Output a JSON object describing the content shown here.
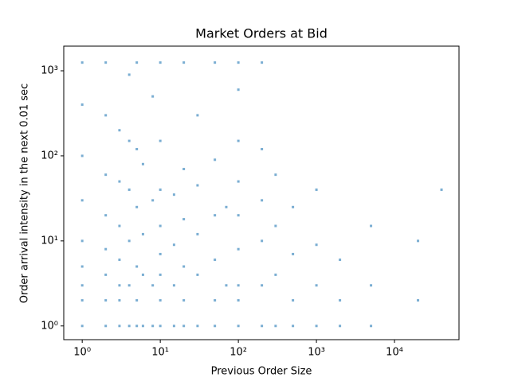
{
  "chart_data": {
    "type": "scatter",
    "title": "Market Orders at Bid",
    "xlabel": "Previous Order Size",
    "ylabel": "Order arrival intensity in the next 0.01 sec",
    "xscale": "log",
    "yscale": "log",
    "color": "#1f77b4",
    "xlim": [
      0.58,
      67000
    ],
    "ylim": [
      0.69,
      1950
    ],
    "xticks": [
      {
        "value": 1,
        "label": "10⁰"
      },
      {
        "value": 10,
        "label": "10¹"
      },
      {
        "value": 100,
        "label": "10²"
      },
      {
        "value": 1000,
        "label": "10³"
      },
      {
        "value": 10000,
        "label": "10⁴"
      }
    ],
    "yticks": [
      {
        "value": 1,
        "label": "10⁰"
      },
      {
        "value": 10,
        "label": "10¹"
      },
      {
        "value": 100,
        "label": "10²"
      },
      {
        "value": 1000,
        "label": "10³"
      }
    ],
    "x": [
      1,
      1,
      1,
      1,
      1,
      1,
      1,
      1,
      1,
      2,
      2,
      2,
      2,
      2,
      2,
      2,
      2,
      3,
      3,
      3,
      3,
      3,
      3,
      3,
      4,
      4,
      4,
      4,
      4,
      4,
      5,
      5,
      5,
      5,
      5,
      5,
      6,
      6,
      6,
      6,
      8,
      8,
      8,
      8,
      10,
      10,
      10,
      10,
      10,
      10,
      10,
      10,
      15,
      15,
      15,
      15,
      20,
      20,
      20,
      20,
      20,
      20,
      30,
      30,
      30,
      30,
      30,
      50,
      50,
      50,
      50,
      50,
      50,
      70,
      70,
      100,
      100,
      100,
      100,
      100,
      100,
      100,
      100,
      100,
      200,
      200,
      200,
      200,
      200,
      200,
      300,
      300,
      300,
      300,
      500,
      500,
      500,
      500,
      1000,
      1000,
      1000,
      1000,
      2000,
      2000,
      2000,
      5000,
      5000,
      5000,
      20000,
      20000,
      40000
    ],
    "y": [
      1,
      2,
      3,
      5,
      10,
      30,
      100,
      400,
      1250,
      1,
      2,
      4,
      8,
      20,
      60,
      300,
      1250,
      1,
      2,
      3,
      6,
      15,
      50,
      200,
      1,
      3,
      10,
      40,
      150,
      900,
      1,
      2,
      5,
      25,
      120,
      1250,
      1,
      4,
      12,
      80,
      1,
      3,
      30,
      500,
      1,
      2,
      4,
      7,
      15,
      40,
      150,
      1250,
      1,
      3,
      9,
      35,
      1,
      2,
      5,
      18,
      70,
      1250,
      1,
      4,
      12,
      45,
      300,
      1,
      2,
      6,
      20,
      90,
      1250,
      3,
      25,
      1,
      2,
      3,
      8,
      20,
      50,
      150,
      600,
      1250,
      1,
      3,
      10,
      30,
      120,
      1250,
      1,
      4,
      15,
      60,
      1,
      2,
      7,
      25,
      1,
      3,
      9,
      40,
      1,
      2,
      6,
      1,
      3,
      15,
      2,
      10,
      40
    ]
  }
}
